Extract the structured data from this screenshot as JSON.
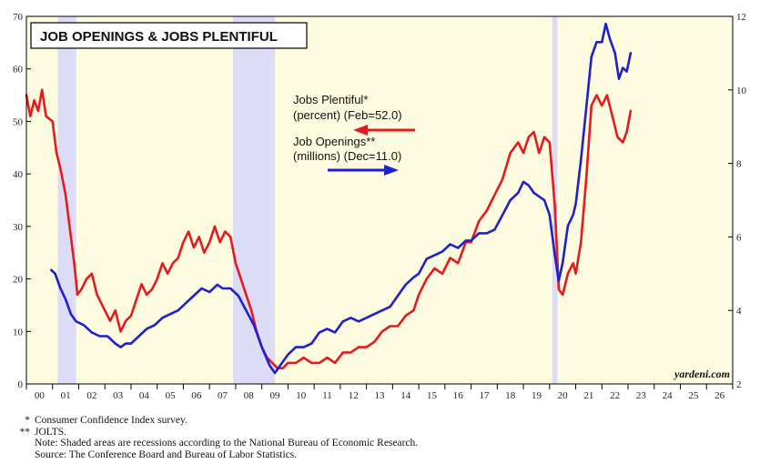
{
  "chart_data": {
    "type": "line",
    "title": "JOB OPENINGS & JOBS PLENTIFUL",
    "brand": "yardeni.com",
    "x_tick_labels": [
      "00",
      "01",
      "02",
      "03",
      "04",
      "05",
      "06",
      "07",
      "08",
      "09",
      "10",
      "11",
      "12",
      "13",
      "14",
      "15",
      "16",
      "17",
      "18",
      "19",
      "20",
      "21",
      "22",
      "23",
      "24",
      "25",
      "26"
    ],
    "x_range": [
      2000.0,
      2027.0
    ],
    "y_left": {
      "range": [
        0,
        70
      ],
      "ticks": [
        0,
        10,
        20,
        30,
        40,
        50,
        60,
        70
      ]
    },
    "y_right": {
      "range": [
        2,
        12
      ],
      "ticks": [
        2,
        4,
        6,
        8,
        10,
        12
      ]
    },
    "grid": false,
    "background": "#fdfbe0",
    "recessions": [
      [
        2001.2,
        2001.9
      ],
      [
        2007.9,
        2009.5
      ],
      [
        2020.1,
        2020.3
      ]
    ],
    "recession_color": "#dcdcf7",
    "series": [
      {
        "name_lines": [
          "Jobs Plentiful*",
          "(percent) (Feb=52.0)"
        ],
        "axis": "left",
        "color": "#e41a1c",
        "points": [
          [
            2000.0,
            55
          ],
          [
            2000.15,
            51
          ],
          [
            2000.3,
            54
          ],
          [
            2000.45,
            52
          ],
          [
            2000.6,
            56
          ],
          [
            2000.75,
            51
          ],
          [
            2001.0,
            50
          ],
          [
            2001.15,
            44
          ],
          [
            2001.3,
            41
          ],
          [
            2001.5,
            36
          ],
          [
            2001.7,
            28
          ],
          [
            2001.85,
            22
          ],
          [
            2001.95,
            17
          ],
          [
            2002.1,
            18
          ],
          [
            2002.3,
            20
          ],
          [
            2002.5,
            21
          ],
          [
            2002.7,
            17
          ],
          [
            2003.0,
            14
          ],
          [
            2003.2,
            12
          ],
          [
            2003.4,
            14
          ],
          [
            2003.6,
            10
          ],
          [
            2003.8,
            12
          ],
          [
            2004.0,
            13
          ],
          [
            2004.2,
            16
          ],
          [
            2004.4,
            19
          ],
          [
            2004.6,
            17
          ],
          [
            2004.8,
            18
          ],
          [
            2005.0,
            20
          ],
          [
            2005.2,
            23
          ],
          [
            2005.4,
            21
          ],
          [
            2005.6,
            23
          ],
          [
            2005.8,
            24
          ],
          [
            2006.0,
            27
          ],
          [
            2006.2,
            29
          ],
          [
            2006.4,
            26
          ],
          [
            2006.6,
            28
          ],
          [
            2006.8,
            25
          ],
          [
            2007.0,
            27
          ],
          [
            2007.2,
            30
          ],
          [
            2007.4,
            27
          ],
          [
            2007.6,
            29
          ],
          [
            2007.8,
            28
          ],
          [
            2008.0,
            23
          ],
          [
            2008.2,
            20
          ],
          [
            2008.4,
            17
          ],
          [
            2008.6,
            14
          ],
          [
            2008.8,
            10
          ],
          [
            2009.0,
            7
          ],
          [
            2009.2,
            5
          ],
          [
            2009.4,
            4
          ],
          [
            2009.6,
            3
          ],
          [
            2009.8,
            3
          ],
          [
            2010.0,
            4
          ],
          [
            2010.3,
            4
          ],
          [
            2010.6,
            5
          ],
          [
            2010.9,
            4
          ],
          [
            2011.2,
            4
          ],
          [
            2011.5,
            5
          ],
          [
            2011.8,
            4
          ],
          [
            2012.1,
            6
          ],
          [
            2012.4,
            6
          ],
          [
            2012.7,
            7
          ],
          [
            2013.0,
            7
          ],
          [
            2013.3,
            8
          ],
          [
            2013.6,
            10
          ],
          [
            2013.9,
            11
          ],
          [
            2014.2,
            11
          ],
          [
            2014.5,
            13
          ],
          [
            2014.8,
            14
          ],
          [
            2015.0,
            17
          ],
          [
            2015.3,
            20
          ],
          [
            2015.6,
            22
          ],
          [
            2015.9,
            21
          ],
          [
            2016.2,
            24
          ],
          [
            2016.5,
            23
          ],
          [
            2016.8,
            27
          ],
          [
            2017.0,
            27
          ],
          [
            2017.3,
            31
          ],
          [
            2017.6,
            33
          ],
          [
            2017.9,
            36
          ],
          [
            2018.2,
            39
          ],
          [
            2018.5,
            44
          ],
          [
            2018.8,
            46
          ],
          [
            2019.0,
            44
          ],
          [
            2019.2,
            47
          ],
          [
            2019.4,
            48
          ],
          [
            2019.6,
            44
          ],
          [
            2019.8,
            47
          ],
          [
            2020.0,
            46
          ],
          [
            2020.2,
            34
          ],
          [
            2020.35,
            18
          ],
          [
            2020.5,
            17
          ],
          [
            2020.7,
            21
          ],
          [
            2020.9,
            23
          ],
          [
            2021.0,
            21
          ],
          [
            2021.2,
            27
          ],
          [
            2021.4,
            39
          ],
          [
            2021.6,
            53
          ],
          [
            2021.8,
            55
          ],
          [
            2022.0,
            53
          ],
          [
            2022.2,
            55
          ],
          [
            2022.4,
            51
          ],
          [
            2022.6,
            47
          ],
          [
            2022.8,
            46
          ],
          [
            2022.95,
            48
          ],
          [
            2023.1,
            52
          ]
        ]
      },
      {
        "name_lines": [
          "Job Openings**",
          "(millions) (Dec=11.0)"
        ],
        "axis": "right",
        "color": "#1f1fcc",
        "points": [
          [
            2000.95,
            5.1
          ],
          [
            2001.1,
            5.0
          ],
          [
            2001.3,
            4.6
          ],
          [
            2001.5,
            4.3
          ],
          [
            2001.7,
            3.9
          ],
          [
            2001.9,
            3.7
          ],
          [
            2002.2,
            3.6
          ],
          [
            2002.5,
            3.4
          ],
          [
            2002.8,
            3.3
          ],
          [
            2003.1,
            3.3
          ],
          [
            2003.4,
            3.1
          ],
          [
            2003.6,
            3.0
          ],
          [
            2003.8,
            3.1
          ],
          [
            2004.0,
            3.1
          ],
          [
            2004.3,
            3.3
          ],
          [
            2004.6,
            3.5
          ],
          [
            2004.9,
            3.6
          ],
          [
            2005.2,
            3.8
          ],
          [
            2005.5,
            3.9
          ],
          [
            2005.8,
            4.0
          ],
          [
            2006.1,
            4.2
          ],
          [
            2006.4,
            4.4
          ],
          [
            2006.7,
            4.6
          ],
          [
            2007.0,
            4.5
          ],
          [
            2007.3,
            4.7
          ],
          [
            2007.5,
            4.6
          ],
          [
            2007.8,
            4.6
          ],
          [
            2008.1,
            4.4
          ],
          [
            2008.4,
            4.0
          ],
          [
            2008.7,
            3.6
          ],
          [
            2009.0,
            3.0
          ],
          [
            2009.3,
            2.5
          ],
          [
            2009.5,
            2.3
          ],
          [
            2009.7,
            2.5
          ],
          [
            2010.0,
            2.8
          ],
          [
            2010.3,
            3.0
          ],
          [
            2010.6,
            3.0
          ],
          [
            2010.9,
            3.1
          ],
          [
            2011.2,
            3.4
          ],
          [
            2011.5,
            3.5
          ],
          [
            2011.8,
            3.4
          ],
          [
            2012.1,
            3.7
          ],
          [
            2012.4,
            3.8
          ],
          [
            2012.7,
            3.7
          ],
          [
            2013.0,
            3.8
          ],
          [
            2013.3,
            3.9
          ],
          [
            2013.6,
            4.0
          ],
          [
            2013.9,
            4.1
          ],
          [
            2014.2,
            4.4
          ],
          [
            2014.5,
            4.7
          ],
          [
            2014.8,
            4.9
          ],
          [
            2015.0,
            5.0
          ],
          [
            2015.3,
            5.4
          ],
          [
            2015.6,
            5.5
          ],
          [
            2015.9,
            5.6
          ],
          [
            2016.2,
            5.8
          ],
          [
            2016.5,
            5.7
          ],
          [
            2016.8,
            5.9
          ],
          [
            2017.0,
            5.9
          ],
          [
            2017.3,
            6.1
          ],
          [
            2017.6,
            6.1
          ],
          [
            2017.9,
            6.2
          ],
          [
            2018.2,
            6.6
          ],
          [
            2018.5,
            7.0
          ],
          [
            2018.8,
            7.2
          ],
          [
            2019.0,
            7.5
          ],
          [
            2019.2,
            7.4
          ],
          [
            2019.4,
            7.2
          ],
          [
            2019.6,
            7.1
          ],
          [
            2019.8,
            7.0
          ],
          [
            2020.0,
            6.6
          ],
          [
            2020.2,
            5.5
          ],
          [
            2020.35,
            4.8
          ],
          [
            2020.5,
            5.3
          ],
          [
            2020.7,
            6.3
          ],
          [
            2020.9,
            6.6
          ],
          [
            2021.0,
            6.9
          ],
          [
            2021.2,
            8.1
          ],
          [
            2021.4,
            9.5
          ],
          [
            2021.6,
            10.9
          ],
          [
            2021.8,
            11.3
          ],
          [
            2022.0,
            11.3
          ],
          [
            2022.15,
            11.8
          ],
          [
            2022.3,
            11.4
          ],
          [
            2022.5,
            11.0
          ],
          [
            2022.65,
            10.3
          ],
          [
            2022.8,
            10.6
          ],
          [
            2022.95,
            10.5
          ],
          [
            2023.1,
            11.0
          ]
        ]
      }
    ]
  },
  "footnotes": [
    {
      "mark": "*",
      "text": "Consumer Confidence Index survey."
    },
    {
      "mark": "**",
      "text": "JOLTS."
    }
  ],
  "notes": [
    "Note: Shaded areas are recessions according to the National Bureau of Economic Research.",
    "Source: The Conference Board and Bureau of Labor Statistics."
  ]
}
